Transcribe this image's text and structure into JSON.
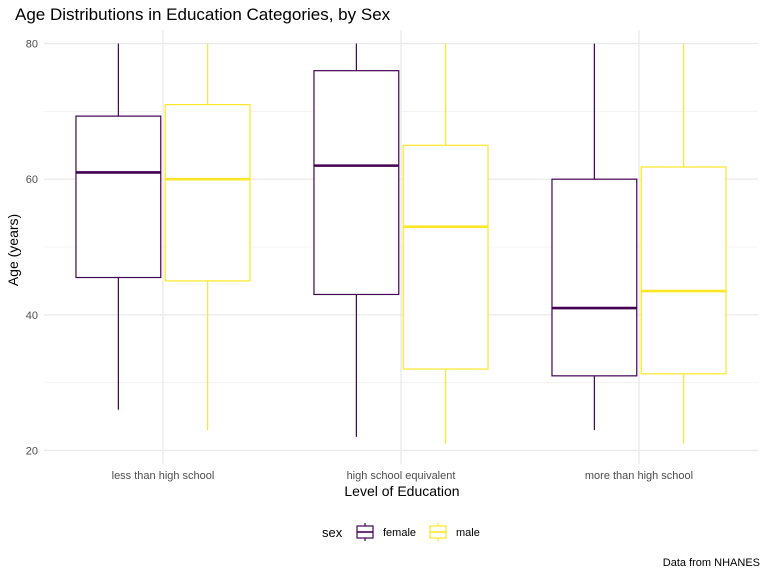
{
  "chart_data": {
    "type": "boxplot",
    "title": "Age Distributions in Education Categories, by Sex",
    "xlabel": "Level of Education",
    "ylabel": "Age (years)",
    "categories": [
      "less than high school",
      "high school equivalent",
      "more than high school"
    ],
    "ylim": [
      18,
      82
    ],
    "yticks": [
      20,
      40,
      60,
      80
    ],
    "grid": true,
    "legend": {
      "title": "sex",
      "position": "bottom",
      "entries": [
        "female",
        "male"
      ]
    },
    "series": [
      {
        "name": "female",
        "color": "#440154",
        "boxes": [
          {
            "min": 26,
            "q1": 45.5,
            "median": 61,
            "q3": 69.3,
            "max": 80
          },
          {
            "min": 22,
            "q1": 43,
            "median": 62,
            "q3": 76,
            "max": 80
          },
          {
            "min": 23,
            "q1": 31,
            "median": 41,
            "q3": 60,
            "max": 80
          }
        ]
      },
      {
        "name": "male",
        "color": "#fde725",
        "boxes": [
          {
            "min": 23,
            "q1": 45,
            "median": 60,
            "q3": 71,
            "max": 80
          },
          {
            "min": 21,
            "q1": 32,
            "median": 53,
            "q3": 65,
            "max": 80
          },
          {
            "min": 21,
            "q1": 31.3,
            "median": 43.5,
            "q3": 61.8,
            "max": 80
          }
        ]
      }
    ],
    "caption": "Data from NHANES"
  }
}
